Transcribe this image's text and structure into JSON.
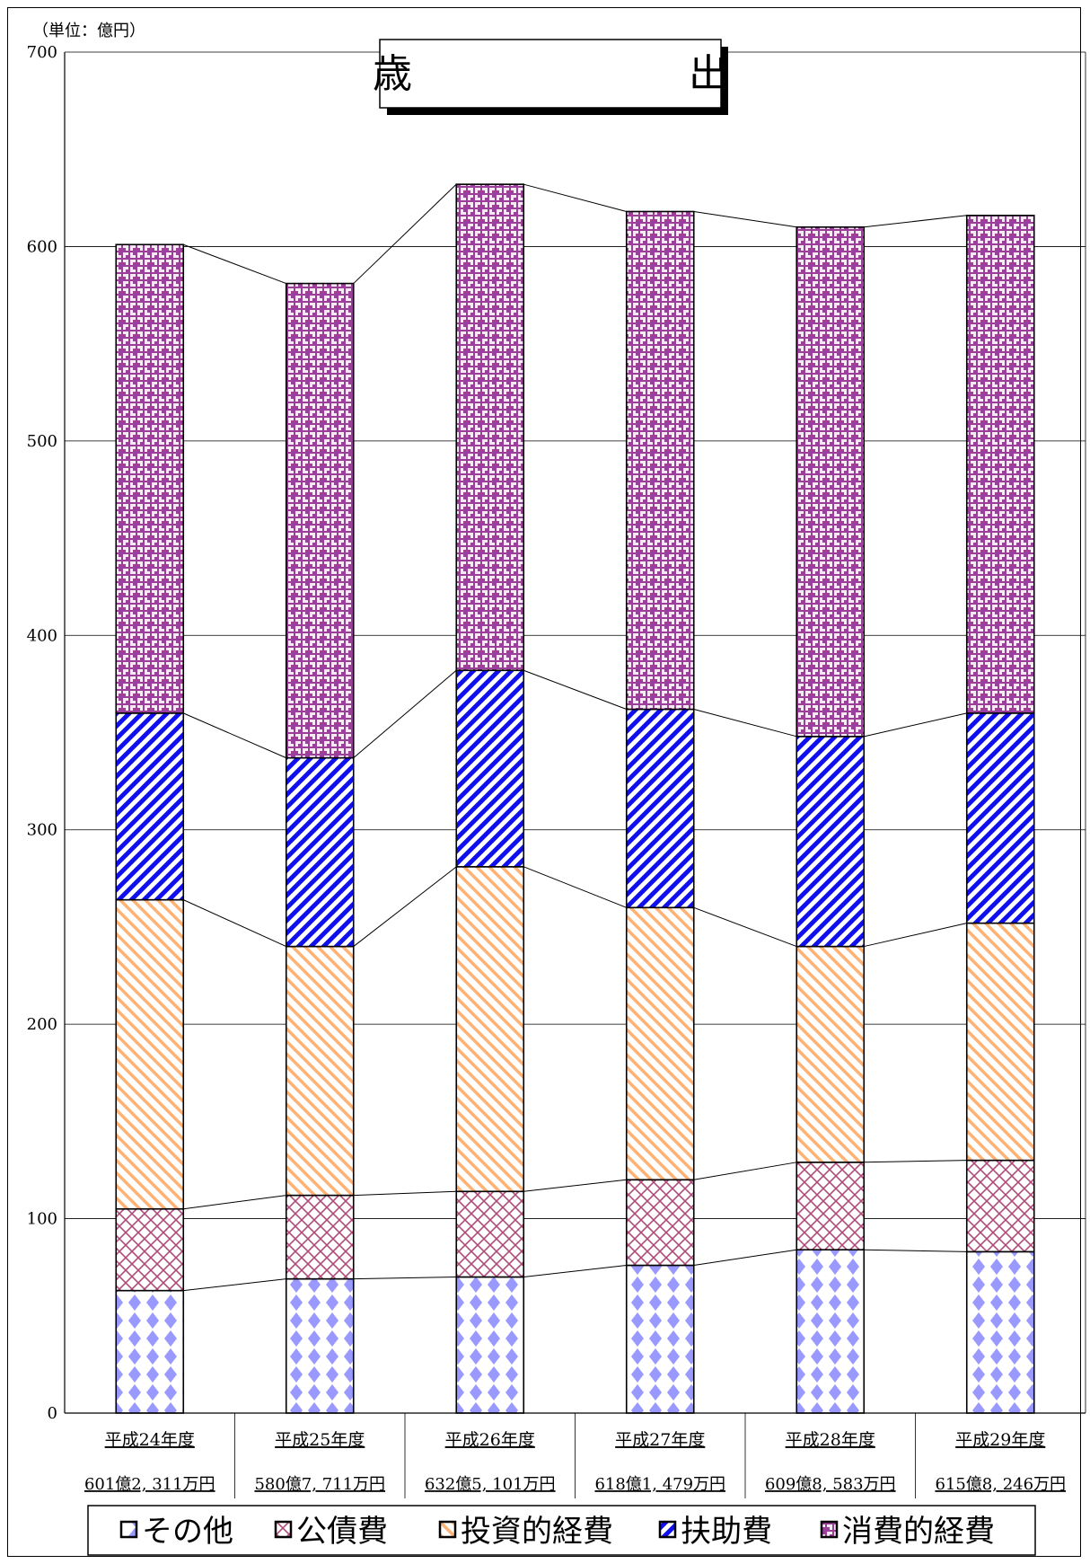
{
  "chart_data": {
    "type": "bar",
    "stacked": true,
    "title": "歳　　　　　　　出",
    "unit_label": "（単位：億円）",
    "ylim": [
      0,
      700
    ],
    "yticks": [
      0,
      100,
      200,
      300,
      400,
      500,
      600,
      700
    ],
    "grid": true,
    "legend_position": "bottom",
    "categories": [
      "平成24年度",
      "平成25年度",
      "平成26年度",
      "平成27年度",
      "平成28年度",
      "平成29年度"
    ],
    "totals": [
      "601億2, 311万円",
      "580億7, 711万円",
      "632億5, 101万円",
      "618億1, 479万円",
      "609億8, 583万円",
      "615億8, 246万円"
    ],
    "series": [
      {
        "name": "その他",
        "values": [
          63,
          69,
          70,
          76,
          84,
          83
        ],
        "color": "#9999ff",
        "pattern": "diamonds"
      },
      {
        "name": "公債費",
        "values": [
          42,
          43,
          44,
          44,
          45,
          47
        ],
        "color": "#993366",
        "pattern": "crosshatch"
      },
      {
        "name": "投資的経費",
        "values": [
          159,
          128,
          167,
          140,
          111,
          122
        ],
        "color": "#ffb273",
        "pattern": "diag-down"
      },
      {
        "name": "扶助費",
        "values": [
          96,
          97,
          101,
          102,
          108,
          108
        ],
        "color": "#0000ff",
        "pattern": "diag-up"
      },
      {
        "name": "消費的経費",
        "values": [
          241,
          244,
          250,
          256,
          262,
          256
        ],
        "color": "#993399",
        "pattern": "weave"
      }
    ]
  }
}
